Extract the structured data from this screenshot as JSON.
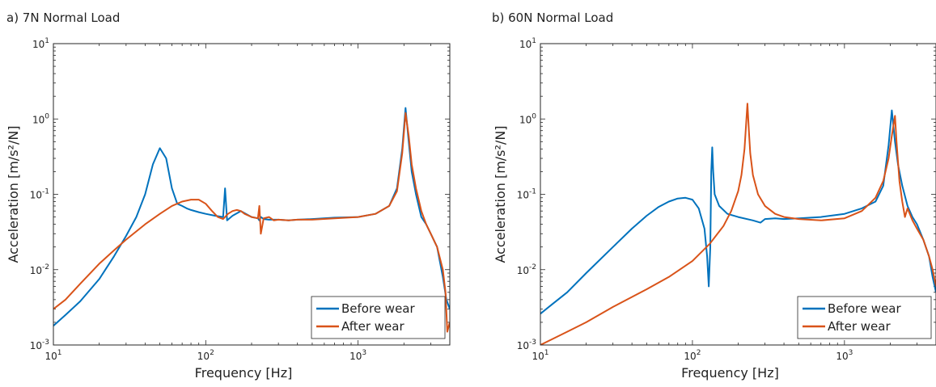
{
  "colors": {
    "before": "#0072BD",
    "after": "#D95319"
  },
  "charts": [
    {
      "title": "a) 7N Normal Load",
      "type": "line",
      "xlabel": "Frequency [Hz]",
      "ylabel": "Acceleration [m/s²/N]",
      "xscale": "log",
      "yscale": "log",
      "xlim": [
        10,
        4000
      ],
      "ylim": [
        0.001,
        10
      ],
      "xticks": [
        {
          "base": "10",
          "exp": "1",
          "v": 10
        },
        {
          "base": "10",
          "exp": "2",
          "v": 100
        },
        {
          "base": "10",
          "exp": "3",
          "v": 1000
        }
      ],
      "yticks": [
        {
          "base": "10",
          "exp": "-3",
          "v": 0.001
        },
        {
          "base": "10",
          "exp": "-2",
          "v": 0.01
        },
        {
          "base": "10",
          "exp": "-1",
          "v": 0.1
        },
        {
          "base": "10",
          "exp": "0",
          "v": 1
        },
        {
          "base": "10",
          "exp": "1",
          "v": 10
        }
      ],
      "legend": {
        "position": "bottom-right",
        "entries": [
          "Before wear",
          "After wear"
        ]
      },
      "series": [
        {
          "name": "Before wear",
          "x": [
            10,
            12,
            15,
            20,
            25,
            30,
            35,
            40,
            45,
            50,
            55,
            60,
            65,
            70,
            75,
            80,
            90,
            100,
            115,
            130,
            134,
            138,
            150,
            170,
            200,
            220,
            225,
            230,
            240,
            260,
            300,
            350,
            400,
            500,
            700,
            1000,
            1300,
            1600,
            1800,
            1950,
            2050,
            2150,
            2250,
            2400,
            2600,
            2800,
            3000,
            3300,
            3600,
            3800,
            4000
          ],
          "y": [
            0.0018,
            0.0025,
            0.0038,
            0.0075,
            0.015,
            0.028,
            0.05,
            0.1,
            0.25,
            0.41,
            0.3,
            0.12,
            0.075,
            0.07,
            0.065,
            0.062,
            0.058,
            0.055,
            0.052,
            0.05,
            0.12,
            0.045,
            0.052,
            0.06,
            0.05,
            0.048,
            0.045,
            0.05,
            0.047,
            0.046,
            0.046,
            0.045,
            0.046,
            0.047,
            0.049,
            0.05,
            0.055,
            0.07,
            0.12,
            0.4,
            1.4,
            0.5,
            0.2,
            0.1,
            0.05,
            0.04,
            0.03,
            0.02,
            0.008,
            0.004,
            0.003
          ]
        },
        {
          "name": "After wear",
          "x": [
            10,
            12,
            15,
            20,
            25,
            30,
            40,
            50,
            60,
            70,
            80,
            90,
            100,
            110,
            120,
            130,
            140,
            150,
            160,
            170,
            180,
            200,
            220,
            225,
            230,
            240,
            260,
            280,
            300,
            350,
            400,
            500,
            700,
            1000,
            1300,
            1600,
            1800,
            1950,
            2050,
            2150,
            2250,
            2400,
            2600,
            2800,
            3000,
            3300,
            3600,
            3750,
            3850,
            4000
          ],
          "y": [
            0.003,
            0.004,
            0.0065,
            0.012,
            0.018,
            0.025,
            0.04,
            0.055,
            0.07,
            0.08,
            0.085,
            0.085,
            0.075,
            0.06,
            0.05,
            0.047,
            0.055,
            0.06,
            0.062,
            0.06,
            0.055,
            0.05,
            0.048,
            0.07,
            0.03,
            0.048,
            0.05,
            0.045,
            0.046,
            0.045,
            0.046,
            0.046,
            0.048,
            0.05,
            0.055,
            0.07,
            0.11,
            0.35,
            1.2,
            0.6,
            0.25,
            0.12,
            0.06,
            0.04,
            0.03,
            0.02,
            0.01,
            0.005,
            0.0015,
            0.002
          ]
        }
      ]
    },
    {
      "title": "b) 60N Normal Load",
      "type": "line",
      "xlabel": "Frequency [Hz]",
      "ylabel": "Acceleration [m/s²/N]",
      "xscale": "log",
      "yscale": "log",
      "xlim": [
        10,
        4000
      ],
      "ylim": [
        0.001,
        10
      ],
      "xticks": [
        {
          "base": "10",
          "exp": "1",
          "v": 10
        },
        {
          "base": "10",
          "exp": "2",
          "v": 100
        },
        {
          "base": "10",
          "exp": "3",
          "v": 1000
        }
      ],
      "yticks": [
        {
          "base": "10",
          "exp": "-3",
          "v": 0.001
        },
        {
          "base": "10",
          "exp": "-2",
          "v": 0.01
        },
        {
          "base": "10",
          "exp": "-1",
          "v": 0.1
        },
        {
          "base": "10",
          "exp": "0",
          "v": 1
        },
        {
          "base": "10",
          "exp": "1",
          "v": 10
        }
      ],
      "legend": {
        "position": "bottom-right",
        "entries": [
          "Before wear",
          "After wear"
        ]
      },
      "series": [
        {
          "name": "Before wear",
          "x": [
            10,
            12,
            15,
            20,
            30,
            40,
            50,
            60,
            70,
            80,
            90,
            100,
            110,
            120,
            125,
            128,
            131,
            133,
            135,
            137,
            140,
            150,
            170,
            200,
            250,
            280,
            300,
            350,
            400,
            500,
            700,
            1000,
            1300,
            1600,
            1800,
            1950,
            2050,
            2150,
            2250,
            2400,
            2600,
            2800,
            3000,
            3300,
            3600,
            3800,
            4000
          ],
          "y": [
            0.0026,
            0.0035,
            0.005,
            0.009,
            0.02,
            0.035,
            0.052,
            0.068,
            0.08,
            0.088,
            0.09,
            0.085,
            0.065,
            0.035,
            0.015,
            0.006,
            0.02,
            0.2,
            0.42,
            0.2,
            0.1,
            0.07,
            0.055,
            0.05,
            0.045,
            0.042,
            0.047,
            0.048,
            0.047,
            0.048,
            0.05,
            0.055,
            0.065,
            0.08,
            0.13,
            0.45,
            1.3,
            0.5,
            0.25,
            0.13,
            0.07,
            0.05,
            0.04,
            0.025,
            0.015,
            0.008,
            0.005
          ]
        },
        {
          "name": "After wear",
          "x": [
            10,
            12,
            15,
            20,
            30,
            50,
            70,
            100,
            130,
            160,
            180,
            200,
            210,
            220,
            225,
            230,
            235,
            240,
            250,
            270,
            300,
            350,
            400,
            500,
            700,
            1000,
            1300,
            1600,
            1800,
            1950,
            2050,
            2150,
            2200,
            2300,
            2400,
            2500,
            2600,
            2800,
            3000,
            3300,
            3600,
            3800,
            4000
          ],
          "y": [
            0.001,
            0.0012,
            0.0015,
            0.002,
            0.0032,
            0.0055,
            0.008,
            0.013,
            0.022,
            0.038,
            0.06,
            0.11,
            0.18,
            0.4,
            0.8,
            1.6,
            0.7,
            0.35,
            0.18,
            0.1,
            0.07,
            0.055,
            0.05,
            0.047,
            0.045,
            0.048,
            0.06,
            0.09,
            0.15,
            0.3,
            0.6,
            1.1,
            0.5,
            0.15,
            0.08,
            0.05,
            0.065,
            0.045,
            0.035,
            0.025,
            0.015,
            0.01,
            0.006
          ]
        }
      ]
    }
  ]
}
